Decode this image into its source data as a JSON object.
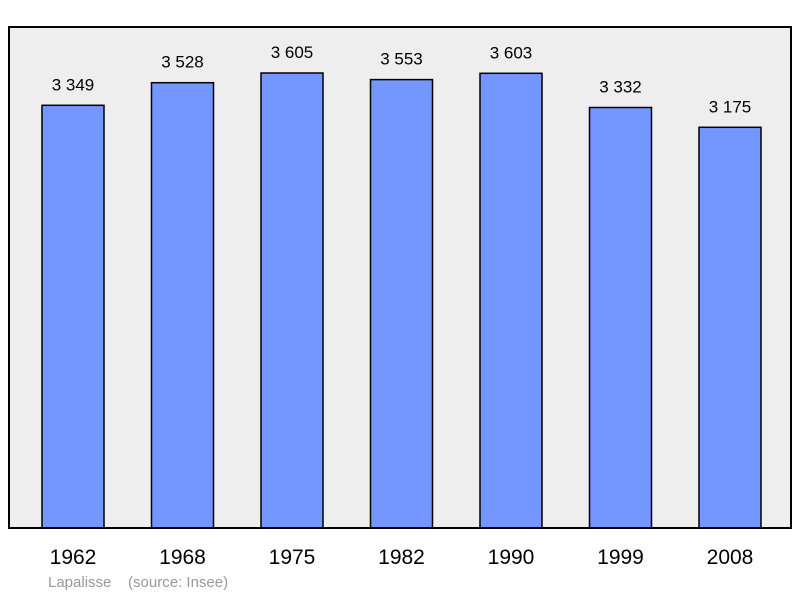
{
  "caption": "Lapalisse    (source: Insee)",
  "colors": {
    "plot_background": "#eeeeee",
    "bar_fill": "#7396ff",
    "bar_stroke": "#000000",
    "frame": "#000000",
    "caption": "#999999"
  },
  "chart_data": {
    "type": "bar",
    "categories": [
      "1962",
      "1968",
      "1975",
      "1982",
      "1990",
      "1999",
      "2008"
    ],
    "values": [
      3349,
      3528,
      3605,
      3553,
      3603,
      3332,
      3175
    ],
    "value_labels": [
      "3 349",
      "3 528",
      "3 605",
      "3 553",
      "3 603",
      "3 332",
      "3 175"
    ],
    "title": "",
    "xlabel": "",
    "ylabel": "",
    "ylim": [
      0,
      3650
    ],
    "grid": false,
    "legend": "none"
  }
}
